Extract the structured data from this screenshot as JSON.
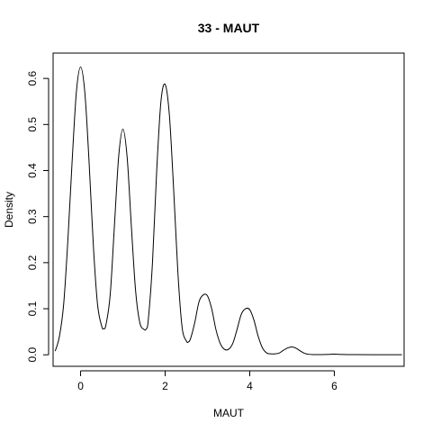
{
  "chart_data": {
    "type": "line",
    "title": "33 - MAUT",
    "xlabel": "MAUT",
    "ylabel": "Density",
    "xlim": [
      -0.65,
      7.65
    ],
    "ylim": [
      -0.025,
      0.655
    ],
    "xticks": [
      0,
      2,
      4,
      6
    ],
    "yticks": [
      0.0,
      0.1,
      0.2,
      0.3,
      0.4,
      0.5,
      0.6
    ],
    "ytick_labels": [
      "0.0",
      "0.1",
      "0.2",
      "0.3",
      "0.4",
      "0.5",
      "0.6"
    ],
    "grid": false,
    "series": [
      {
        "x": [
          -0.6,
          -0.5,
          -0.4,
          -0.3,
          -0.2,
          -0.1,
          0.0,
          0.1,
          0.2,
          0.3,
          0.4,
          0.5,
          0.55,
          0.6,
          0.7,
          0.8,
          0.9,
          1.0,
          1.1,
          1.2,
          1.3,
          1.4,
          1.5,
          1.55,
          1.6,
          1.7,
          1.8,
          1.9,
          2.0,
          2.1,
          2.2,
          2.3,
          2.4,
          2.5,
          2.55,
          2.6,
          2.7,
          2.8,
          2.9,
          3.0,
          3.1,
          3.2,
          3.3,
          3.4,
          3.5,
          3.6,
          3.7,
          3.8,
          3.9,
          4.0,
          4.1,
          4.2,
          4.3,
          4.4,
          4.5,
          4.6,
          4.7,
          4.8,
          4.9,
          5.0,
          5.1,
          5.2,
          5.3,
          5.4,
          5.5,
          5.7,
          5.9,
          6.0,
          6.1,
          6.3,
          6.5,
          7.0,
          7.6
        ],
        "y": [
          0.008,
          0.04,
          0.11,
          0.25,
          0.42,
          0.57,
          0.625,
          0.57,
          0.42,
          0.24,
          0.11,
          0.062,
          0.057,
          0.065,
          0.13,
          0.28,
          0.43,
          0.49,
          0.43,
          0.28,
          0.14,
          0.07,
          0.055,
          0.056,
          0.075,
          0.2,
          0.4,
          0.55,
          0.587,
          0.52,
          0.36,
          0.18,
          0.06,
          0.03,
          0.028,
          0.035,
          0.07,
          0.115,
          0.13,
          0.128,
          0.1,
          0.055,
          0.025,
          0.012,
          0.012,
          0.025,
          0.055,
          0.088,
          0.1,
          0.098,
          0.075,
          0.04,
          0.015,
          0.004,
          0.002,
          0.002,
          0.004,
          0.01,
          0.015,
          0.017,
          0.014,
          0.008,
          0.003,
          0.001,
          0.0005,
          0.0005,
          0.001,
          0.0015,
          0.001,
          0.0005,
          0.0003,
          0.0002,
          0.0001
        ]
      }
    ]
  }
}
